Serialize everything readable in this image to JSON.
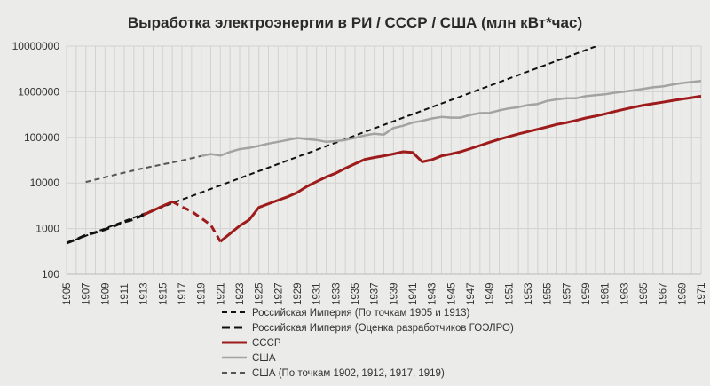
{
  "chart_data": {
    "type": "line",
    "title": "Выработка электроэнергии в РИ / СССР / США (млн кВт*час)",
    "y_scale": "log",
    "ylim": [
      100,
      10000000
    ],
    "xlim": [
      1905,
      1971
    ],
    "y_ticks": [
      "100",
      "1000",
      "10000",
      "100000",
      "1000000",
      "10000000"
    ],
    "x_ticks": [
      "1905",
      "1907",
      "1909",
      "1911",
      "1913",
      "1915",
      "1917",
      "1919",
      "1921",
      "1923",
      "1925",
      "1927",
      "1929",
      "1931",
      "1933",
      "1935",
      "1937",
      "1939",
      "1941",
      "1943",
      "1945",
      "1947",
      "1949",
      "1951",
      "1953",
      "1955",
      "1957",
      "1959",
      "1961",
      "1963",
      "1965",
      "1967",
      "1969",
      "1971"
    ],
    "grid": true,
    "legend_position": "bottom",
    "series": [
      {
        "name": "Российская Империя (По точкам 1905 и 1913)",
        "color": "#111111",
        "style": "dashed",
        "x": [
          1905,
          1913,
          1960
        ],
        "y": [
          480,
          2100,
          9800000
        ]
      },
      {
        "name": "Российская Империя (Оценка разработчиков ГОЭЛРО)",
        "color": "#111111",
        "style": "dashed-bold",
        "x": [
          1905,
          1906,
          1907,
          1908,
          1909,
          1910,
          1911,
          1912,
          1913,
          1914,
          1915,
          1916
        ],
        "y": [
          480,
          580,
          720,
          820,
          950,
          1150,
          1400,
          1600,
          2000,
          2500,
          3100,
          3900
        ]
      },
      {
        "name": "СССР",
        "color": "#9e1b1b",
        "style": "solid",
        "x": [
          1913,
          1914,
          1915,
          1916
        ],
        "y": [
          2000,
          2500,
          3100,
          3900
        ]
      },
      {
        "name": "СССР",
        "color": "#9e1b1b",
        "style": "dashed",
        "x": [
          1916,
          1917,
          1918,
          1919,
          1920,
          1921
        ],
        "y": [
          3900,
          3000,
          2400,
          1700,
          1200,
          520
        ]
      },
      {
        "name": "СССР",
        "color": "#9e1b1b",
        "style": "solid",
        "x": [
          1921,
          1922,
          1923,
          1924,
          1925,
          1926,
          1927,
          1928,
          1929,
          1930,
          1931,
          1932,
          1933,
          1934,
          1935,
          1936,
          1937,
          1938,
          1939,
          1940,
          1941,
          1942,
          1943,
          1944,
          1945,
          1946,
          1947,
          1948,
          1949,
          1950,
          1951,
          1952,
          1953,
          1954,
          1955,
          1956,
          1957,
          1958,
          1959,
          1960,
          1961,
          1962,
          1963,
          1964,
          1965,
          1966,
          1967,
          1968,
          1969,
          1970,
          1971
        ],
        "y": [
          520,
          775,
          1150,
          1560,
          2920,
          3510,
          4200,
          5000,
          6200,
          8400,
          10700,
          13500,
          16400,
          21000,
          26300,
          32800,
          36200,
          39400,
          43200,
          48300,
          46700,
          29100,
          32300,
          39200,
          43300,
          48600,
          56500,
          66300,
          78300,
          91200,
          104000,
          119000,
          134000,
          150000,
          170000,
          192000,
          210000,
          235000,
          265000,
          292000,
          327000,
          369000,
          412000,
          459000,
          507000,
          545000,
          589000,
          638000,
          689000,
          740000,
          800000
        ]
      },
      {
        "name": "США",
        "color": "#a3a3a3",
        "style": "solid",
        "x": [
          1919,
          1920,
          1921,
          1922,
          1923,
          1924,
          1925,
          1926,
          1927,
          1928,
          1929,
          1930,
          1931,
          1932,
          1933,
          1934,
          1935,
          1936,
          1937,
          1938,
          1939,
          1940,
          1941,
          1942,
          1943,
          1944,
          1945,
          1946,
          1947,
          1948,
          1949,
          1950,
          1951,
          1952,
          1953,
          1954,
          1955,
          1956,
          1957,
          1958,
          1959,
          1960,
          1961,
          1962,
          1963,
          1964,
          1965,
          1966,
          1967,
          1968,
          1969,
          1970,
          1971
        ],
        "y": [
          39000,
          43000,
          40000,
          48000,
          55000,
          59000,
          65000,
          73000,
          80000,
          88000,
          97000,
          92000,
          88000,
          80000,
          83000,
          88000,
          98000,
          110000,
          120000,
          115000,
          160000,
          180000,
          210000,
          230000,
          260000,
          280000,
          270000,
          270000,
          310000,
          340000,
          345000,
          390000,
          430000,
          460000,
          510000,
          540000,
          630000,
          680000,
          720000,
          720000,
          800000,
          840000,
          880000,
          950000,
          1010000,
          1080000,
          1160000,
          1250000,
          1310000,
          1430000,
          1550000,
          1640000,
          1720000
        ]
      },
      {
        "name": "США (По точкам 1902, 1912, 1917, 1919)",
        "color": "#555555",
        "style": "dashed",
        "x": [
          1907,
          1910,
          1913,
          1917,
          1919
        ],
        "y": [
          10500,
          15000,
          21000,
          31000,
          39000
        ]
      }
    ]
  },
  "legend": [
    {
      "label": "Российская Империя (По точкам 1905 и 1913)",
      "color": "#111111",
      "style": "dashed"
    },
    {
      "label": "Российская Империя (Оценка разработчиков ГОЭЛРО)",
      "color": "#111111",
      "style": "dashed-bold"
    },
    {
      "label": "СССР",
      "color": "#9e1b1b",
      "style": "solid"
    },
    {
      "label": "США",
      "color": "#a3a3a3",
      "style": "solid"
    },
    {
      "label": "США (По точкам 1902, 1912, 1917, 1919)",
      "color": "#555555",
      "style": "dashed"
    }
  ]
}
